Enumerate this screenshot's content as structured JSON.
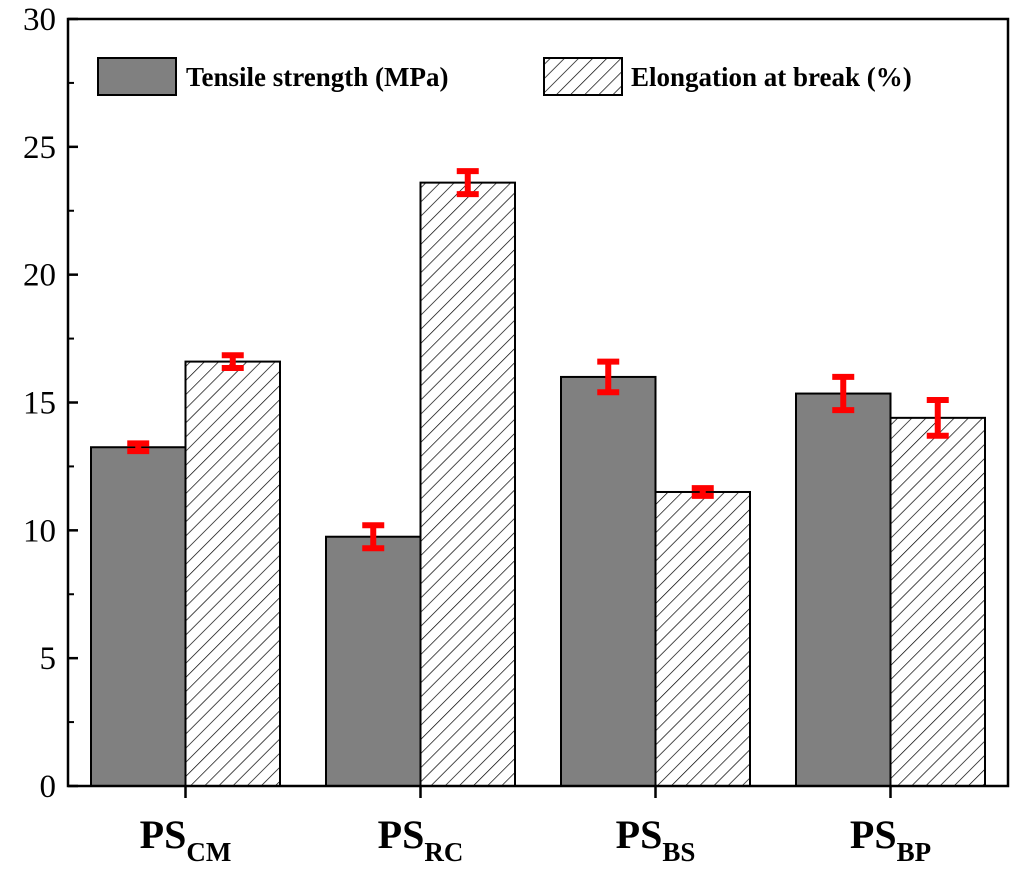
{
  "chart_data": {
    "type": "bar",
    "title": "",
    "xlabel": "",
    "ylabel": "",
    "ylim": [
      0,
      30
    ],
    "yticks": [
      0,
      5,
      10,
      15,
      20,
      25,
      30
    ],
    "categories": [
      {
        "main": "PS",
        "sub": "CM"
      },
      {
        "main": "PS",
        "sub": "RC"
      },
      {
        "main": "PS",
        "sub": "BS"
      },
      {
        "main": "PS",
        "sub": "BP"
      }
    ],
    "series": [
      {
        "name": "Tensile strength (MPa)",
        "fill": "solid",
        "color": "#808080",
        "values": [
          13.25,
          9.75,
          16.0,
          15.35
        ],
        "errors": [
          0.15,
          0.45,
          0.6,
          0.65
        ]
      },
      {
        "name": "Elongation at break (%)",
        "fill": "hatch",
        "color": "#ffffff",
        "values": [
          16.6,
          23.6,
          11.5,
          14.4
        ],
        "errors": [
          0.25,
          0.45,
          0.15,
          0.7
        ]
      }
    ],
    "error_bar_color": "#ff0000",
    "legend": {
      "position": "top"
    },
    "grid": false
  }
}
